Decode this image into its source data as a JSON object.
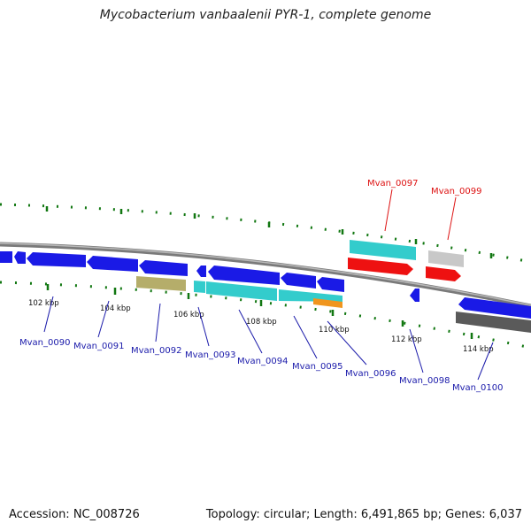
{
  "title": "Mycobacterium vanbaalenii PYR-1, complete genome",
  "footer": {
    "accession": "Accession: NC_008726",
    "summary": "Topology: circular; Length: 6,491,865 bp; Genes: 6,037"
  },
  "colors": {
    "blue": "#1a1ae6",
    "cyan": "#33cccc",
    "red": "#ee1111",
    "olive": "#b5ad6a",
    "orange": "#f0951e",
    "light_gray": "#c8c8c8",
    "dark_gray": "#5a5a5a",
    "tick_green": "#117711",
    "label_blue": "#1a1aaa",
    "label_red": "#dd1111"
  },
  "ticks": [
    {
      "label": "102 kbp"
    },
    {
      "label": "104 kbp"
    },
    {
      "label": "106 kbp"
    },
    {
      "label": "108 kbp"
    },
    {
      "label": "110 kbp"
    },
    {
      "label": "112 kbp"
    },
    {
      "label": "114 kbp"
    }
  ],
  "genes": [
    {
      "name": "Mvan_0090",
      "color": "blue"
    },
    {
      "name": "Mvan_0091",
      "color": "blue"
    },
    {
      "name": "Mvan_0092",
      "color": "olive"
    },
    {
      "name": "Mvan_0093",
      "color": "cyan"
    },
    {
      "name": "Mvan_0094",
      "color": "cyan"
    },
    {
      "name": "Mvan_0095",
      "color": "blue"
    },
    {
      "name": "Mvan_0096",
      "color": "orange"
    },
    {
      "name": "Mvan_0097",
      "color": "red"
    },
    {
      "name": "Mvan_0098",
      "color": "blue"
    },
    {
      "name": "Mvan_0099",
      "color": "red"
    },
    {
      "name": "Mvan_0100",
      "color": "blue"
    }
  ]
}
